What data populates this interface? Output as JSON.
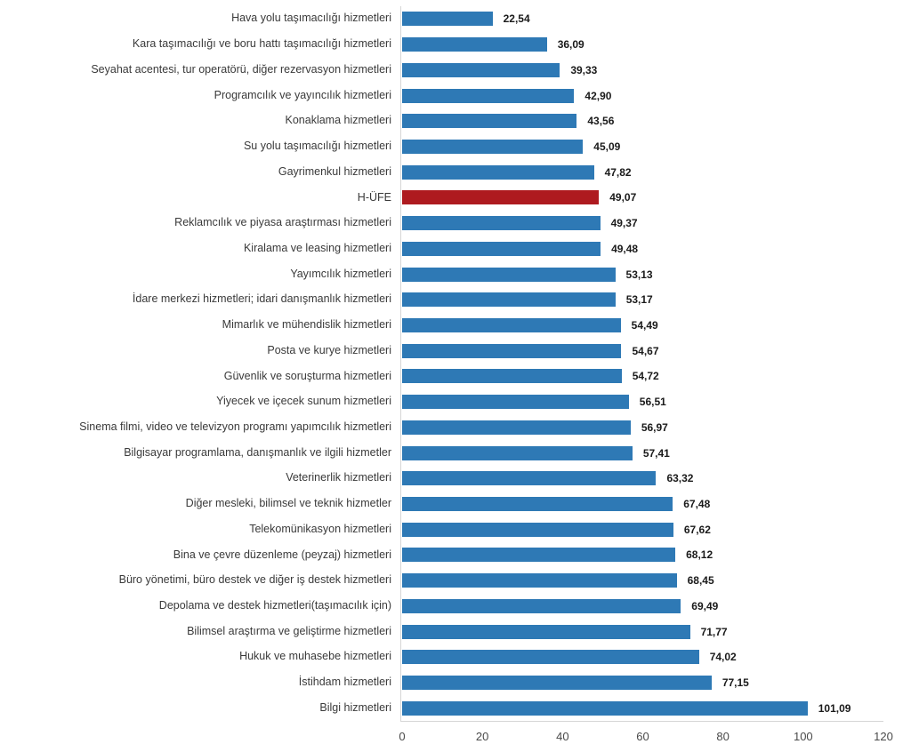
{
  "chart_data": {
    "type": "bar",
    "orientation": "horizontal",
    "title": "",
    "xlabel": "",
    "ylabel": "",
    "xlim": [
      0,
      120
    ],
    "x_ticks": [
      0,
      20,
      40,
      60,
      80,
      100,
      120
    ],
    "grid": false,
    "legend": null,
    "highlight_index": 7,
    "categories": [
      "Hava yolu taşımacılığı hizmetleri",
      "Kara taşımacılığı ve boru hattı taşımacılığı hizmetleri",
      "Seyahat acentesi, tur operatörü, diğer rezervasyon hizmetleri",
      "Programcılık ve yayıncılık hizmetleri",
      "Konaklama hizmetleri",
      "Su yolu taşımacılığı hizmetleri",
      "Gayrimenkul hizmetleri",
      "H-ÜFE",
      "Reklamcılık ve piyasa araştırması hizmetleri",
      "Kiralama ve leasing hizmetleri",
      "Yayımcılık hizmetleri",
      "İdare merkezi hizmetleri; idari danışmanlık hizmetleri",
      "Mimarlık ve mühendislik hizmetleri",
      "Posta ve kurye hizmetleri",
      "Güvenlik ve soruşturma hizmetleri",
      "Yiyecek ve içecek sunum hizmetleri",
      "Sinema filmi, video ve televizyon programı yapımcılık hizmetleri",
      "Bilgisayar programlama, danışmanlık ve ilgili hizmetler",
      "Veterinerlik hizmetleri",
      "Diğer mesleki, bilimsel ve teknik hizmetler",
      "Telekomünikasyon hizmetleri",
      "Bina ve çevre düzenleme (peyzaj) hizmetleri",
      "Büro yönetimi, büro destek ve diğer iş destek hizmetleri",
      "Depolama ve destek hizmetleri(taşımacılık için)",
      "Bilimsel araştırma ve geliştirme hizmetleri",
      "Hukuk ve muhasebe hizmetleri",
      "İstihdam hizmetleri",
      "Bilgi hizmetleri"
    ],
    "values": [
      22.54,
      36.09,
      39.33,
      42.9,
      43.56,
      45.09,
      47.82,
      49.07,
      49.37,
      49.48,
      53.13,
      53.17,
      54.49,
      54.67,
      54.72,
      56.51,
      56.97,
      57.41,
      63.32,
      67.48,
      67.62,
      68.12,
      68.45,
      69.49,
      71.77,
      74.02,
      77.15,
      101.09
    ],
    "value_labels": [
      "22,54",
      "36,09",
      "39,33",
      "42,90",
      "43,56",
      "45,09",
      "47,82",
      "49,07",
      "49,37",
      "49,48",
      "53,13",
      "53,17",
      "54,49",
      "54,67",
      "54,72",
      "56,51",
      "56,97",
      "57,41",
      "63,32",
      "67,48",
      "67,62",
      "68,12",
      "68,45",
      "69,49",
      "71,77",
      "74,02",
      "77,15",
      "101,09"
    ],
    "colors": {
      "bar": "#2E79B5",
      "highlight": "#AE1A1F",
      "axis_line": "#D6D6D6",
      "category_text": "#3A3A3A",
      "value_text": "#1A1A1A",
      "tick_text": "#4A4A4A"
    }
  }
}
